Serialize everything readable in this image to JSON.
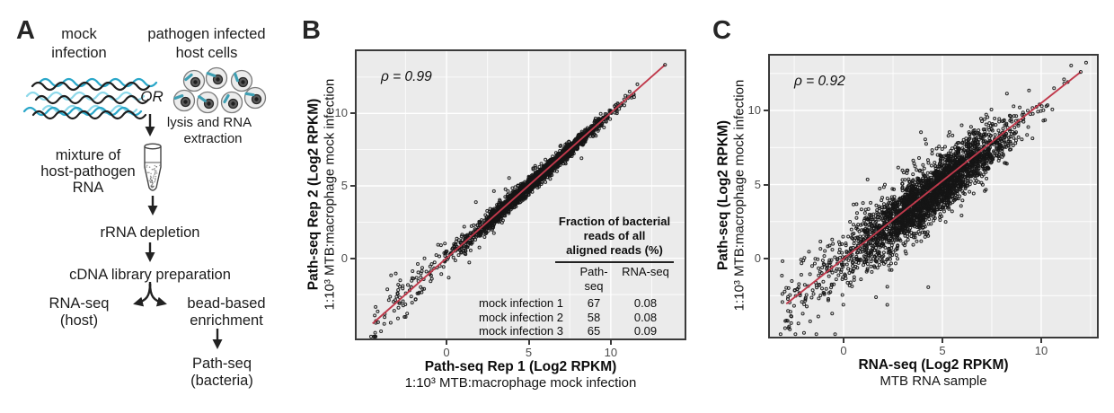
{
  "colors": {
    "plot_bg": "#ebebeb",
    "grid": "#ffffff",
    "trend_red": "#c0394b",
    "point_stroke": "#1a1a1a",
    "rna_teal": "#2aa7c9",
    "rna_teal_light": "#8fd9ea",
    "rna_black": "#1f1f1f",
    "tick_label_gray": "#4d4d4d"
  },
  "panel_labels": {
    "a": "A",
    "b": "B",
    "c": "C"
  },
  "panel_a": {
    "mock_infection": [
      "mock",
      "infection"
    ],
    "or": "OR",
    "pathogen_infected": [
      "pathogen infected",
      "host cells"
    ],
    "lysis": [
      "lysis and RNA",
      "extraction"
    ],
    "mixture": [
      "mixture of",
      "host-pathogen",
      "RNA"
    ],
    "rrna_depletion": "rRNA depletion",
    "cdna_library": "cDNA library preparation",
    "rna_seq": [
      "RNA-seq",
      "(host)"
    ],
    "bead_based": [
      "bead-based",
      "enrichment"
    ],
    "path_seq": [
      "Path-seq",
      "(bacteria)"
    ]
  },
  "chart_data": [
    {
      "panel": "B",
      "type": "scatter",
      "annotation": "ρ = 0.99",
      "correlation_rho": 0.99,
      "xlabel": "Path-seq Rep 1 (Log2 RPKM)",
      "xlabel_sub": "1:10³ MTB:macrophage mock infection",
      "ylabel": "Path-seq Rep 2 (Log2 RPKM)",
      "ylabel_sub": "1:10³ MTB:macrophage mock infection",
      "xlim": [
        -5.47,
        14.49
      ],
      "ylim": [
        -5.53,
        14.29
      ],
      "x_ticks": [
        0,
        5,
        10
      ],
      "y_ticks": [
        0,
        5,
        10
      ],
      "x_tick_labels": [
        "0",
        "5",
        "10"
      ],
      "y_tick_labels": [
        "0",
        "5",
        "10"
      ],
      "x_minor_ticks": [
        -2.5,
        2.5,
        7.5,
        12.5
      ],
      "y_minor_ticks": [
        -2.5,
        2.5,
        7.5,
        12.5
      ],
      "grid": "major+minor white on gray",
      "legend": "none",
      "trendline": {
        "x1": -4.5,
        "y1": -4.5,
        "x2": 13.3,
        "y2": 13.35,
        "color": "#c0394b"
      },
      "points": {
        "n": 2600,
        "seed": 12,
        "x_mean": 5.5,
        "x_sd": 2.0,
        "low_tail_frac": 0.05,
        "low_tail_range": [
          -4.6,
          1.5
        ],
        "slope": 1.0,
        "intercept": 0.0,
        "noise_base": 0.2,
        "noise_amp": 1.1,
        "noise_decay": 3.2,
        "outlier_frac": 0.02,
        "outlier_mult": 2.8,
        "clip_x": [
          -4.6,
          13.3
        ],
        "clip_y": [
          -5.4,
          14.1
        ]
      },
      "inset_table": {
        "title_lines": [
          "Fraction of bacterial",
          "reads of all",
          "aligned reads (%)"
        ],
        "columns": [
          "Path-seq",
          "RNA-seq"
        ],
        "rows": [
          {
            "label": "mock infection 1",
            "path_seq": "67",
            "rna_seq": "0.08"
          },
          {
            "label": "mock infection 2",
            "path_seq": "58",
            "rna_seq": "0.08"
          },
          {
            "label": "mock infection 3",
            "path_seq": "65",
            "rna_seq": "0.09"
          }
        ]
      }
    },
    {
      "panel": "C",
      "type": "scatter",
      "annotation": "ρ = 0.92",
      "correlation_rho": 0.92,
      "xlabel": "RNA-seq (Log2 RPKM)",
      "xlabel_sub": "MTB RNA sample",
      "ylabel": "Path-seq (Log2 RPKM)",
      "ylabel_sub": "1:10³ MTB:macrophage mock infection",
      "xlim": [
        -3.73,
        12.82
      ],
      "ylim": [
        -5.27,
        13.7
      ],
      "x_ticks": [
        0,
        5,
        10
      ],
      "y_ticks": [
        0,
        5,
        10
      ],
      "x_tick_labels": [
        "0",
        "5",
        "10"
      ],
      "y_tick_labels": [
        "0",
        "5",
        "10"
      ],
      "x_minor_ticks": [
        -2.5,
        2.5,
        7.5,
        12.5
      ],
      "y_minor_ticks": [
        -2.5,
        2.5,
        7.5,
        12.5
      ],
      "grid": "major+minor white on gray",
      "legend": "none",
      "trendline": {
        "x1": -2.9,
        "y1": -3.05,
        "x2": 12.0,
        "y2": 12.6,
        "color": "#c0394b"
      },
      "points": {
        "n": 3000,
        "seed": 7,
        "x_mean": 4.4,
        "x_sd": 2.0,
        "low_tail_frac": 0.05,
        "low_tail_range": [
          -3.2,
          1.8
        ],
        "slope": 1.03,
        "intercept": -0.1,
        "noise_base": 0.85,
        "noise_amp": 0.5,
        "noise_decay": 4.0,
        "outlier_frac": 0.015,
        "outlier_mult": 2.5,
        "clip_x": [
          -3.2,
          12.3
        ],
        "clip_y": [
          -5.1,
          13.4
        ],
        "extra_outliers": {
          "n": 20,
          "x_range": [
            -2.5,
            6.5
          ],
          "drop_base": 1.2,
          "drop_sd": 1.6
        }
      }
    }
  ]
}
